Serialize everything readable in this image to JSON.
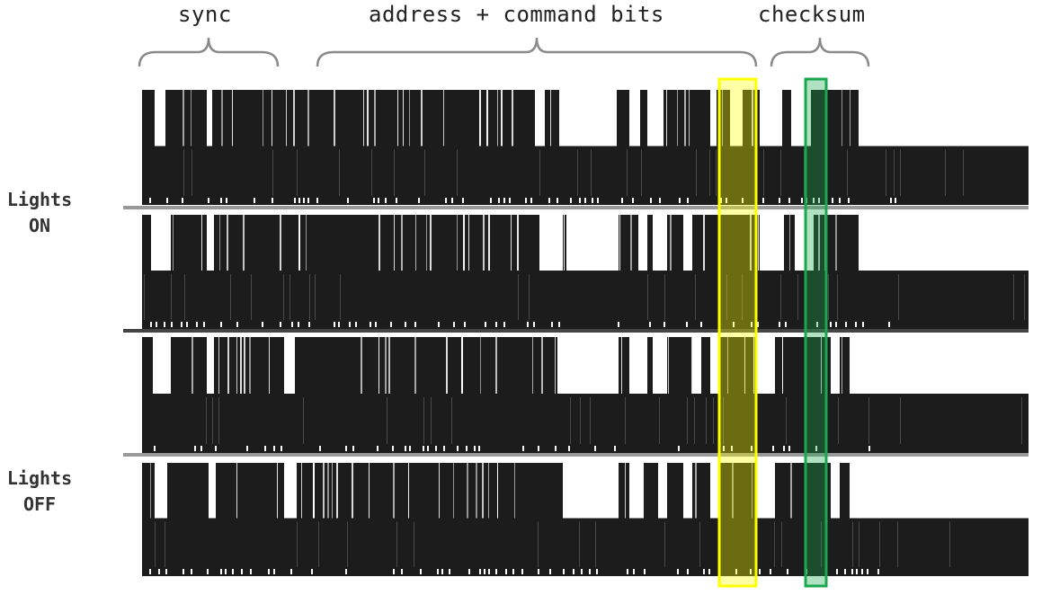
{
  "sections": {
    "sync": "sync",
    "address_command": "address + command bits",
    "checksum": "checksum"
  },
  "side_labels": {
    "on": [
      "Lights",
      "ON"
    ],
    "off": [
      "Lights",
      "OFF"
    ]
  },
  "colors": {
    "waveform": "#1c1c1c",
    "separator": "#999999",
    "brace": "#8a8a8a",
    "highlight_yellow": "#ffff00",
    "highlight_green": "#1aa84f"
  },
  "traces": [
    {
      "group": "Lights ON"
    },
    {
      "group": "Lights ON"
    },
    {
      "group": "Lights OFF"
    },
    {
      "group": "Lights OFF"
    }
  ]
}
